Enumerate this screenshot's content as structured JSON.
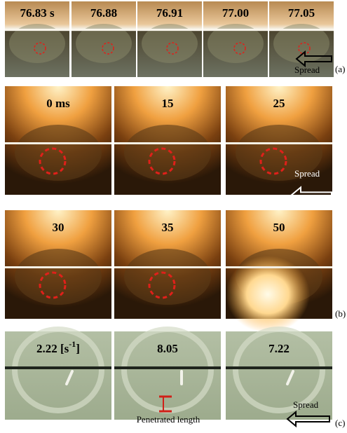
{
  "row_a": {
    "labels": [
      "76.83 s",
      "76.88",
      "76.91",
      "77.00",
      "77.05"
    ],
    "arrow_label": "Spread",
    "panel_label": "(a)"
  },
  "row_b": {
    "labels": [
      "0 ms",
      "15",
      "25",
      "30",
      "35",
      "50"
    ],
    "arrow_label": "Spread",
    "panel_label": "(b)"
  },
  "row_c": {
    "first_label": {
      "text": "2.22 [s",
      "superscript": "-1",
      "tail": "]"
    },
    "labels": [
      "8.05",
      "7.22"
    ],
    "annotation": "Penetrated length",
    "arrow_label": "Spread",
    "panel_label": "(c)"
  }
}
